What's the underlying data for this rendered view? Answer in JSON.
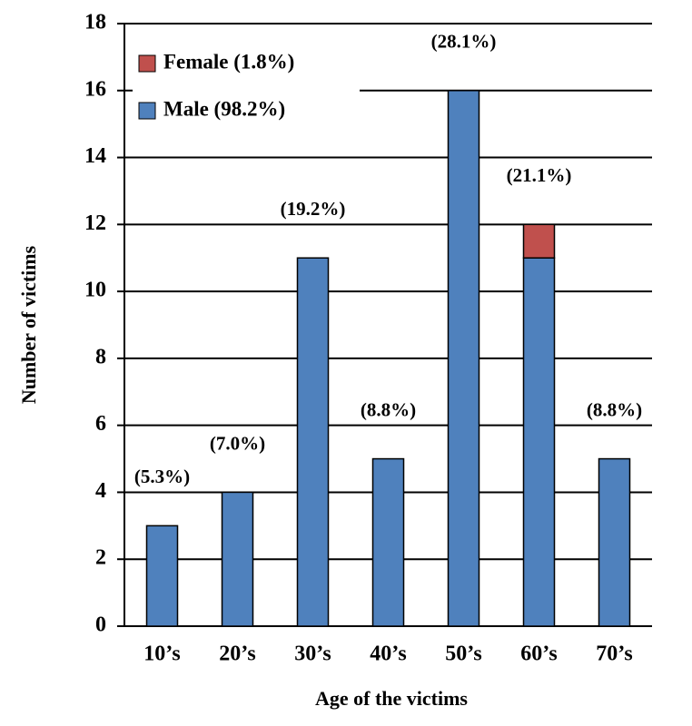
{
  "chart_data": {
    "type": "stacked-bar",
    "x_label": "Age of the victims",
    "y_label": "Number of victims",
    "categories": [
      "10’s",
      "20’s",
      "30’s",
      "40’s",
      "50’s",
      "60’s",
      "70’s"
    ],
    "series": [
      {
        "name": "Male (98.2%)",
        "color": "#4f81bd",
        "values": [
          3,
          4,
          11,
          5,
          16,
          11,
          5
        ]
      },
      {
        "name": "Female (1.8%)",
        "color": "#c0504d",
        "values": [
          0,
          0,
          0,
          0,
          0,
          1,
          0
        ]
      }
    ],
    "annotations": [
      "(5.3%)",
      "(7.0%)",
      "(19.2%)",
      "(8.8%)",
      "(28.1%)",
      "(21.1%)",
      "(8.8%)"
    ],
    "ylim": [
      0,
      18
    ],
    "yticks": [
      0,
      2,
      4,
      6,
      8,
      10,
      12,
      14,
      16,
      18
    ],
    "grid": true,
    "legend": "top-left"
  }
}
